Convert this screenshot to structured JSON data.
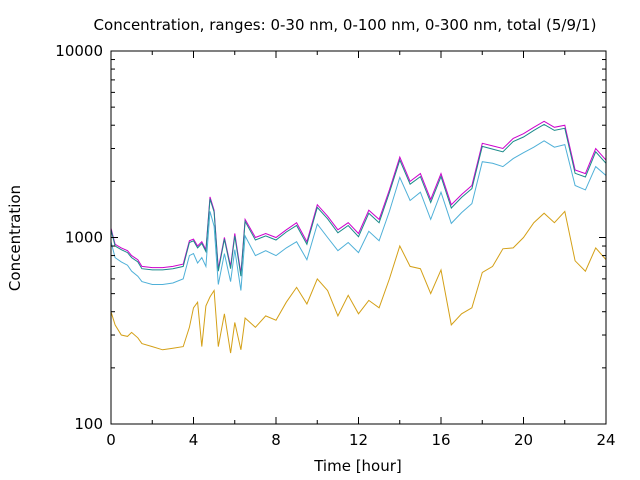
{
  "chart_data": {
    "type": "line",
    "title": "Concentration, ranges: 0-30 nm, 0-100 nm, 0-300 nm, total (5/9/1)",
    "xlabel": "Time [hour]",
    "ylabel": "Concentration",
    "xlim": [
      0,
      24
    ],
    "ylim": [
      100,
      10000
    ],
    "yscale": "log",
    "grid": false,
    "x_ticks": [
      0,
      4,
      8,
      12,
      16,
      20,
      24
    ],
    "x_tick_labels": [
      "0",
      "4",
      "8",
      "12",
      "16",
      "20",
      "24"
    ],
    "y_ticks": [
      100,
      1000,
      10000
    ],
    "y_tick_labels": [
      "100",
      "1000",
      "10000"
    ],
    "colors": {
      "range_0_30": "#d4a017",
      "range_0_100": "#4fb0d8",
      "range_0_300": "#1a8a8a",
      "total": "#cc00cc"
    },
    "x": [
      0,
      0.2,
      0.5,
      0.8,
      1,
      1.3,
      1.5,
      2,
      2.5,
      3,
      3.5,
      3.8,
      4,
      4.2,
      4.4,
      4.6,
      4.8,
      5,
      5.2,
      5.5,
      5.8,
      6,
      6.3,
      6.5,
      7,
      7.5,
      8,
      8.5,
      9,
      9.5,
      10,
      10.5,
      11,
      11.5,
      12,
      12.5,
      13,
      13.5,
      14,
      14.5,
      15,
      15.5,
      16,
      16.5,
      17,
      17.5,
      18,
      18.5,
      19,
      19.5,
      20,
      20.5,
      21,
      21.5,
      22,
      22.5,
      23,
      23.5,
      24
    ],
    "series": [
      {
        "key": "total",
        "values": [
          1120,
          920,
          880,
          850,
          800,
          760,
          700,
          690,
          690,
          700,
          720,
          960,
          980,
          900,
          950,
          860,
          1650,
          1400,
          680,
          1000,
          700,
          1050,
          640,
          1250,
          1000,
          1050,
          1000,
          1100,
          1200,
          950,
          1500,
          1300,
          1100,
          1200,
          1050,
          1400,
          1250,
          1800,
          2700,
          2000,
          2200,
          1600,
          2200,
          1500,
          1700,
          1900,
          3200,
          3100,
          3000,
          3400,
          3600,
          3900,
          4200,
          3900,
          4000,
          2300,
          2200,
          3000,
          2600
        ]
      },
      {
        "key": "range_0_300",
        "values": [
          1100,
          900,
          860,
          830,
          780,
          740,
          680,
          670,
          670,
          680,
          700,
          940,
          960,
          880,
          930,
          840,
          1610,
          1370,
          660,
          980,
          680,
          1020,
          620,
          1220,
          970,
          1020,
          970,
          1070,
          1160,
          920,
          1450,
          1260,
          1060,
          1160,
          1010,
          1350,
          1200,
          1740,
          2600,
          1930,
          2120,
          1540,
          2120,
          1440,
          1640,
          1830,
          3080,
          2980,
          2880,
          3270,
          3460,
          3750,
          4040,
          3750,
          3850,
          2210,
          2110,
          2880,
          2500
        ]
      },
      {
        "key": "range_0_100",
        "values": [
          950,
          780,
          740,
          710,
          660,
          620,
          580,
          560,
          560,
          570,
          600,
          800,
          820,
          730,
          780,
          700,
          1380,
          1150,
          560,
          820,
          580,
          860,
          520,
          1020,
          800,
          850,
          800,
          880,
          950,
          760,
          1180,
          1000,
          850,
          940,
          830,
          1080,
          960,
          1380,
          2100,
          1580,
          1750,
          1250,
          1750,
          1190,
          1360,
          1520,
          2550,
          2500,
          2400,
          2650,
          2850,
          3050,
          3300,
          3050,
          3150,
          1900,
          1800,
          2400,
          2150
        ]
      },
      {
        "key": "range_0_30",
        "values": [
          400,
          340,
          300,
          295,
          310,
          290,
          270,
          260,
          250,
          255,
          260,
          330,
          420,
          450,
          260,
          430,
          480,
          520,
          260,
          390,
          240,
          350,
          250,
          370,
          330,
          380,
          360,
          450,
          540,
          440,
          600,
          520,
          380,
          490,
          390,
          460,
          420,
          600,
          900,
          700,
          680,
          500,
          670,
          340,
          390,
          420,
          650,
          700,
          870,
          880,
          1000,
          1200,
          1350,
          1200,
          1380,
          750,
          660,
          880,
          760
        ]
      }
    ]
  }
}
